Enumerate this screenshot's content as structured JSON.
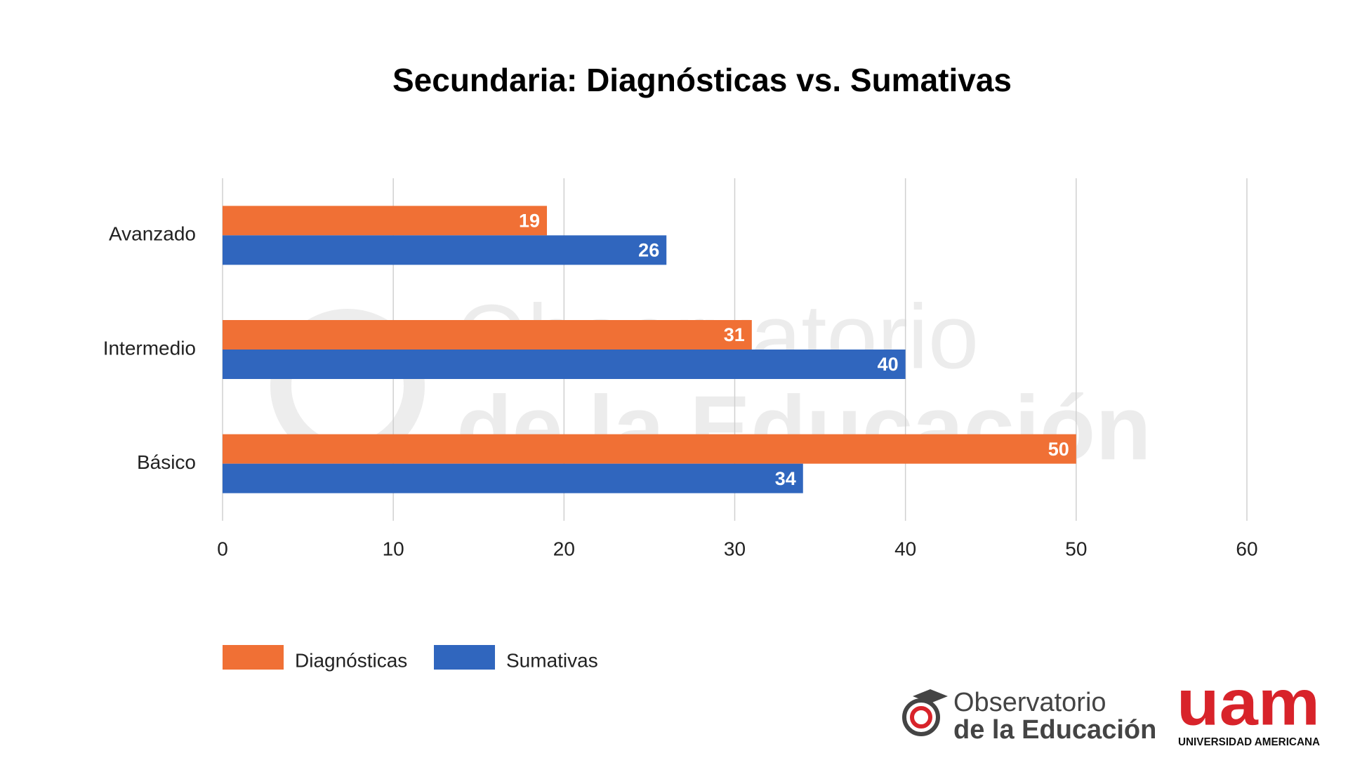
{
  "chart_data": {
    "type": "bar",
    "orientation": "horizontal",
    "title": "Secundaria: Diagnósticas vs. Sumativas",
    "categories": [
      "Avanzado",
      "Intermedio",
      "Básico"
    ],
    "series": [
      {
        "name": "Diagnósticas",
        "color": "#f07035",
        "values": [
          19,
          31,
          50
        ]
      },
      {
        "name": "Sumativas",
        "color": "#3066be",
        "values": [
          26,
          40,
          34
        ]
      }
    ],
    "xlim": [
      0,
      60
    ],
    "xticks": [
      0,
      10,
      20,
      30,
      40,
      50,
      60
    ],
    "grid": true,
    "legend": "bottom"
  },
  "logos": {
    "observatorio_line1": "Observatorio",
    "observatorio_line2": "de la Educación",
    "uam": "uam",
    "uam_name": "UNIVERSIDAD AMERICANA"
  }
}
